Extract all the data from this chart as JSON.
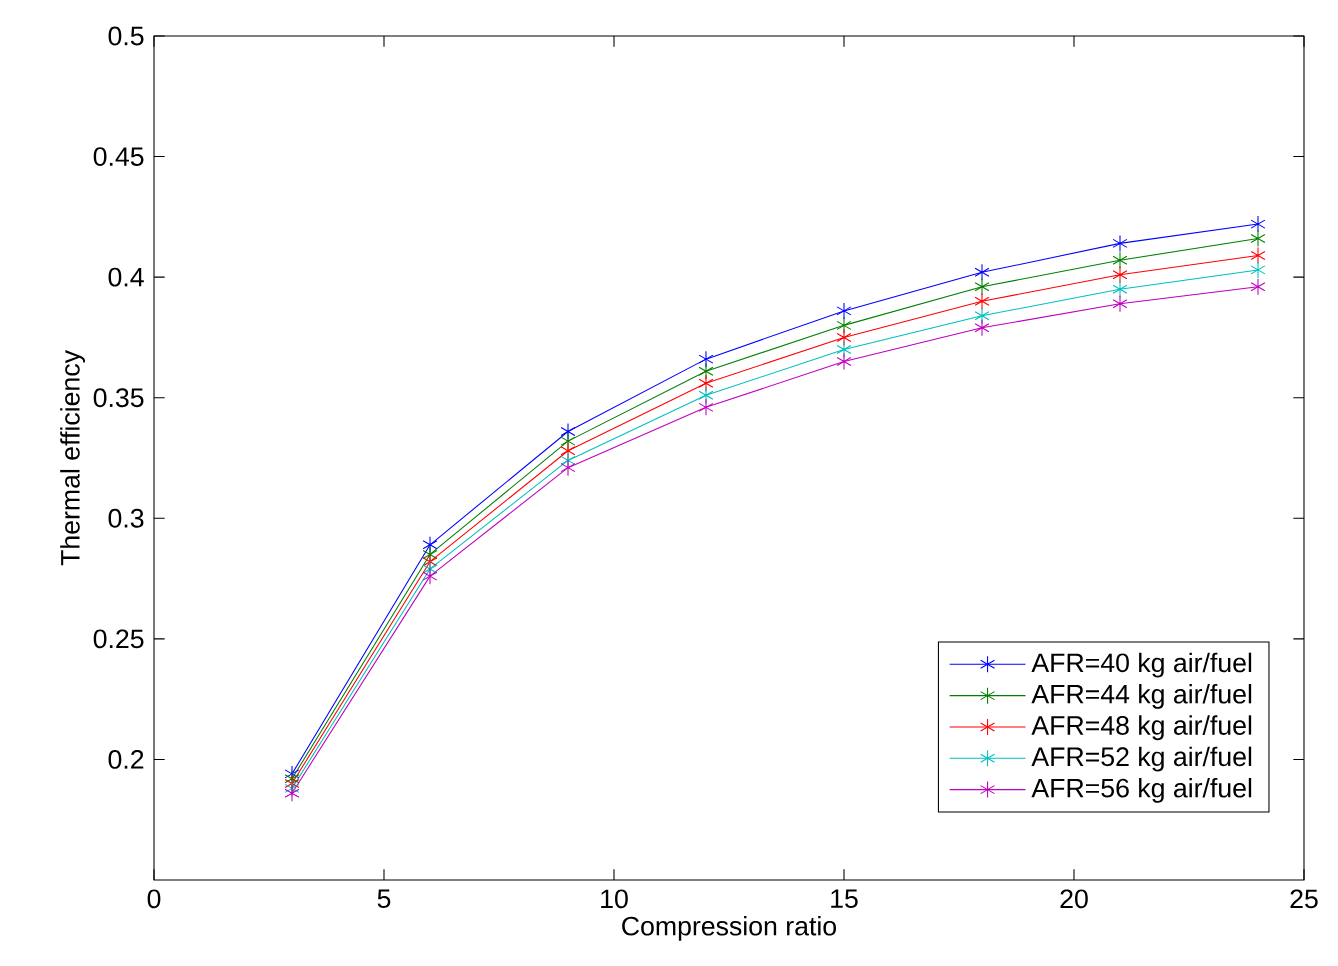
{
  "chart_data": {
    "type": "line",
    "xlabel": "Compression ratio",
    "ylabel": "Thermal efficiency",
    "x": [
      3,
      6,
      9,
      12,
      15,
      18,
      21,
      24
    ],
    "series": [
      {
        "name": "AFR=40 kg air/fuel",
        "color": "#0000ff",
        "values": [
          0.194,
          0.289,
          0.336,
          0.366,
          0.386,
          0.402,
          0.414,
          0.422
        ]
      },
      {
        "name": "AFR=44 kg air/fuel",
        "color": "#008000",
        "values": [
          0.192,
          0.285,
          0.332,
          0.361,
          0.38,
          0.396,
          0.407,
          0.416
        ]
      },
      {
        "name": "AFR=48 kg air/fuel",
        "color": "#ff0000",
        "values": [
          0.19,
          0.282,
          0.328,
          0.356,
          0.375,
          0.39,
          0.401,
          0.409
        ]
      },
      {
        "name": "AFR=52 kg air/fuel",
        "color": "#00bfbf",
        "values": [
          0.188,
          0.279,
          0.324,
          0.351,
          0.37,
          0.384,
          0.395,
          0.403
        ]
      },
      {
        "name": "AFR=56 kg air/fuel",
        "color": "#bf00bf",
        "values": [
          0.186,
          0.276,
          0.321,
          0.346,
          0.365,
          0.379,
          0.389,
          0.396
        ]
      }
    ],
    "xlim": [
      0,
      25
    ],
    "ylim": [
      0.15,
      0.5
    ],
    "xticks": [
      0,
      5,
      10,
      15,
      20,
      25
    ],
    "yticks": [
      0.2,
      0.25,
      0.3,
      0.35,
      0.4,
      0.45,
      0.5
    ],
    "legend": "bottom right",
    "marker": "cross",
    "line_style": "solid",
    "grid": false
  }
}
